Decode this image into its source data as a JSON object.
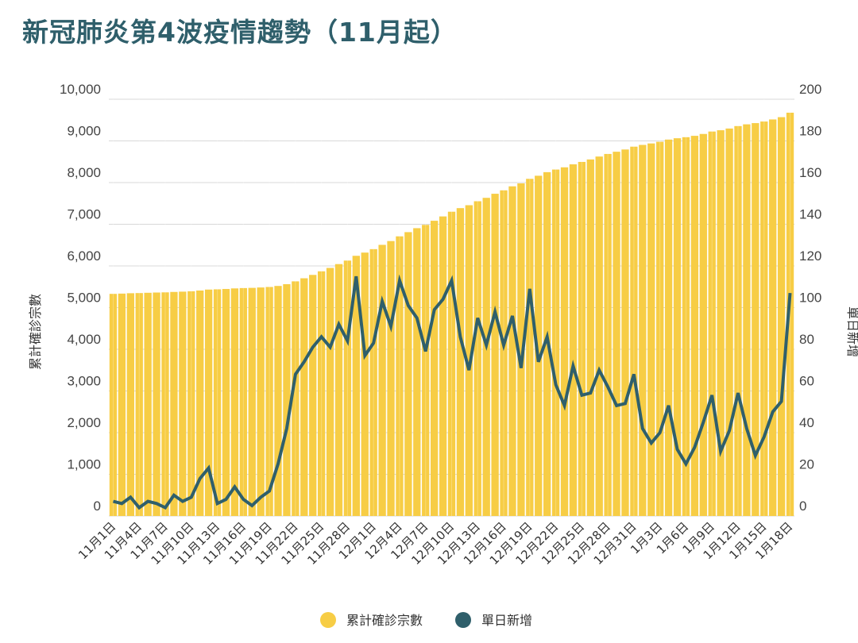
{
  "title": "新冠肺炎第4波疫情趨勢（11月起）",
  "chart_data": {
    "type": "bar+line",
    "title": "新冠肺炎第4波疫情趨勢（11月起）",
    "ylabel_left": "累計確診宗數",
    "ylabel_right": "單日新增",
    "ylim_left": [
      0,
      10000
    ],
    "ylim_right": [
      0,
      200
    ],
    "yticks_left": [
      "0",
      "1,000",
      "2,000",
      "3,000",
      "4,000",
      "5,000",
      "6,000",
      "7,000",
      "8,000",
      "9,000",
      "10,000"
    ],
    "yticks_right": [
      "0",
      "20",
      "40",
      "60",
      "80",
      "100",
      "120",
      "140",
      "160",
      "180",
      "200"
    ],
    "grid": true,
    "legend_position": "bottom",
    "colors": {
      "cumulative": "#f7cd45",
      "daily": "#2f5f6b"
    },
    "dates": [
      "11月1日",
      "11月2日",
      "11月3日",
      "11月4日",
      "11月5日",
      "11月6日",
      "11月7日",
      "11月8日",
      "11月9日",
      "11月10日",
      "11月11日",
      "11月12日",
      "11月13日",
      "11月14日",
      "11月15日",
      "11月16日",
      "11月17日",
      "11月18日",
      "11月19日",
      "11月20日",
      "11月21日",
      "11月22日",
      "11月23日",
      "11月24日",
      "11月25日",
      "11月26日",
      "11月27日",
      "11月28日",
      "11月29日",
      "11月30日",
      "12月1日",
      "12月2日",
      "12月3日",
      "12月4日",
      "12月5日",
      "12月6日",
      "12月7日",
      "12月8日",
      "12月9日",
      "12月10日",
      "12月11日",
      "12月12日",
      "12月13日",
      "12月14日",
      "12月15日",
      "12月16日",
      "12月17日",
      "12月18日",
      "12月19日",
      "12月20日",
      "12月21日",
      "12月22日",
      "12月23日",
      "12月24日",
      "12月25日",
      "12月26日",
      "12月27日",
      "12月28日",
      "12月29日",
      "12月30日",
      "12月31日",
      "1月1日",
      "1月2日",
      "1月3日",
      "1月4日",
      "1月5日",
      "1月6日",
      "1月7日",
      "1月8日",
      "1月9日",
      "1月10日",
      "1月11日",
      "1月12日",
      "1月13日",
      "1月14日",
      "1月15日",
      "1月16日",
      "1月17日",
      "1月18日"
    ],
    "xtick_labels": [
      "11月1日",
      "11月4日",
      "11月7日",
      "11月10日",
      "11月13日",
      "11月16日",
      "11月19日",
      "11月22日",
      "11月25日",
      "11月28日",
      "12月1日",
      "12月4日",
      "12月7日",
      "12月10日",
      "12月13日",
      "12月16日",
      "12月19日",
      "12月22日",
      "12月25日",
      "12月28日",
      "12月31日",
      "1月3日",
      "1月6日",
      "1月9日",
      "1月12日",
      "1月15日",
      "1月18日"
    ],
    "series": [
      {
        "name": "累計確診宗數",
        "type": "bar",
        "axis": "left",
        "values": [
          5330,
          5336,
          5345,
          5349,
          5356,
          5362,
          5366,
          5376,
          5383,
          5392,
          5410,
          5433,
          5439,
          5447,
          5461,
          5469,
          5474,
          5483,
          5495,
          5520,
          5562,
          5630,
          5704,
          5785,
          5871,
          5952,
          6044,
          6128,
          6243,
          6320,
          6403,
          6506,
          6597,
          6710,
          6811,
          6906,
          6985,
          7084,
          7188,
          7301,
          7387,
          7457,
          7552,
          7634,
          7732,
          7814,
          7910,
          7981,
          8090,
          8164,
          8250,
          8313,
          8366,
          8438,
          8496,
          8555,
          8625,
          8687,
          8740,
          8794,
          8862,
          8904,
          8939,
          8979,
          9032,
          9064,
          9089,
          9122,
          9167,
          9225,
          9256,
          9297,
          9356,
          9398,
          9427,
          9465,
          9515,
          9570,
          9677
        ]
      },
      {
        "name": "單日新增",
        "type": "line",
        "axis": "right",
        "values": [
          7,
          6,
          9,
          4,
          7,
          6,
          4,
          10,
          7,
          9,
          18,
          23,
          6,
          8,
          14,
          8,
          5,
          9,
          12,
          25,
          42,
          68,
          74,
          81,
          86,
          81,
          92,
          84,
          115,
          77,
          83,
          103,
          91,
          113,
          101,
          95,
          79,
          99,
          104,
          113,
          86,
          70,
          95,
          82,
          98,
          82,
          96,
          71,
          109,
          74,
          86,
          63,
          53,
          72,
          58,
          59,
          70,
          62,
          53,
          54,
          68,
          42,
          35,
          40,
          53,
          32,
          25,
          33,
          45,
          58,
          31,
          41,
          59,
          42,
          29,
          38,
          50,
          55,
          107
        ]
      }
    ]
  }
}
